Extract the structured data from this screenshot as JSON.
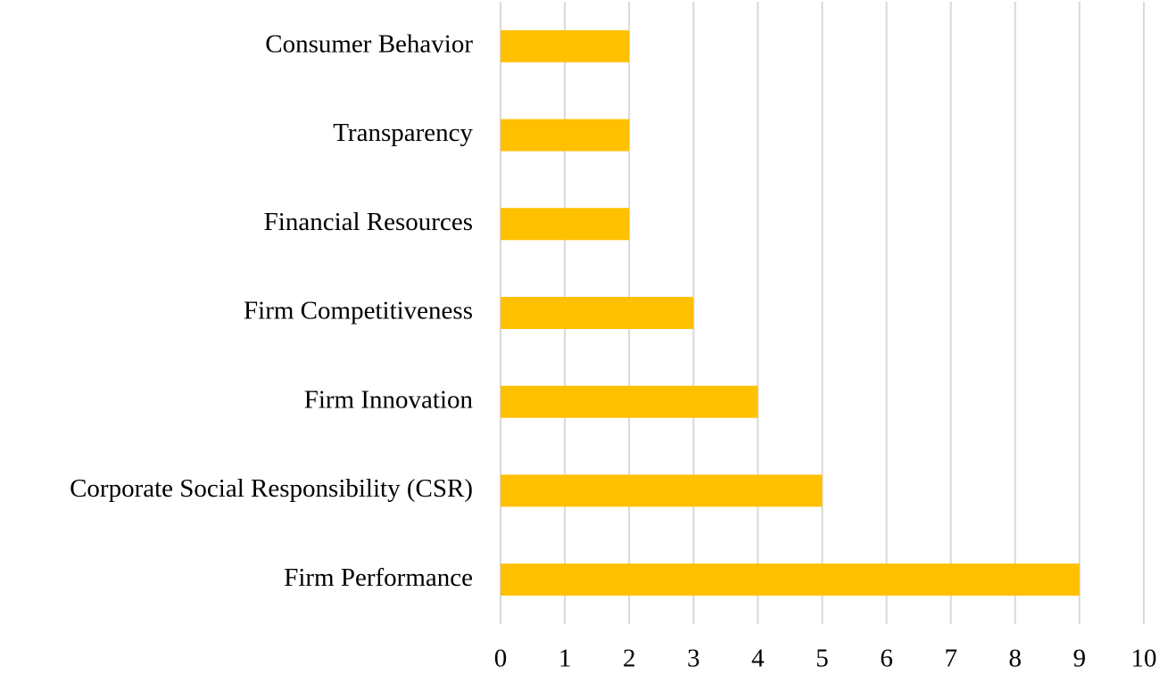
{
  "chart_data": {
    "type": "hbar",
    "categories": [
      "Consumer Behavior",
      "Transparency",
      "Financial Resources",
      "Firm Competitiveness",
      "Firm Innovation",
      "Corporate Social Responsibility (CSR)",
      "Firm Performance"
    ],
    "values": [
      2,
      2,
      2,
      3,
      4,
      5,
      9
    ],
    "color": "#ffc000",
    "xlim": [
      0,
      10
    ],
    "xticks": [
      0,
      1,
      2,
      3,
      4,
      5,
      6,
      7,
      8,
      9,
      10
    ],
    "grid": true
  }
}
